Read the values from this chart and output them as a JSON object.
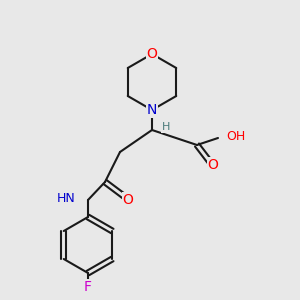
{
  "bg_color": "#e8e8e8",
  "bond_color": "#1a1a1a",
  "colors": {
    "O": "#ff0000",
    "N": "#0000cd",
    "F": "#cc00cc",
    "C": "#1a1a1a",
    "H": "#4a7a7a"
  },
  "lw": 1.5,
  "lw_double": 1.5
}
